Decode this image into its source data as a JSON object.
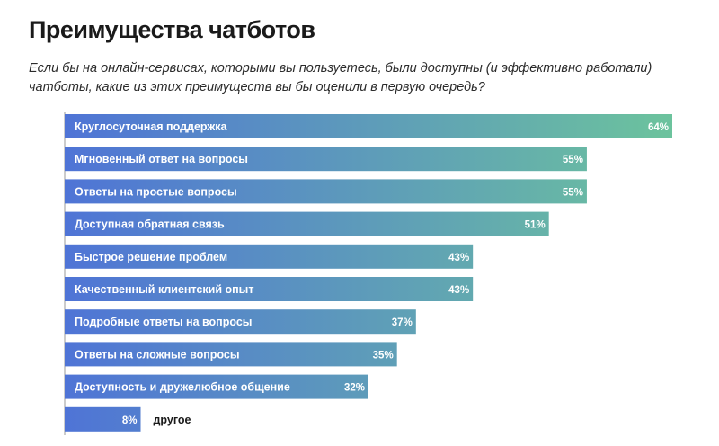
{
  "chart_data": {
    "type": "bar",
    "orientation": "horizontal",
    "title": "Преимущества чатботов",
    "subtitle": "Если бы на онлайн-сервисах, которыми вы пользуетесь, были доступны (и эффективно работали) чатботы, какие из этих преимуществ вы бы оценили в первую очередь?",
    "categories": [
      "Круглосуточная поддержка",
      "Мгновенный ответ на вопросы",
      "Ответы на простые вопросы",
      "Доступная обратная связь",
      "Быстрое решение проблем",
      "Качественный клиентский опыт",
      "Подробные ответы на вопросы",
      "Ответы на сложные вопросы",
      "Доступность и дружелюбное общение",
      "другое"
    ],
    "values": [
      64,
      55,
      55,
      51,
      43,
      43,
      37,
      35,
      32,
      8
    ],
    "value_labels": [
      "64%",
      "55%",
      "55%",
      "51%",
      "43%",
      "43%",
      "37%",
      "35%",
      "32%",
      "8%"
    ],
    "unit": "%",
    "xlim": [
      0,
      64
    ],
    "colors": {
      "start": "#4f74d6",
      "end": "#6cc39d"
    }
  }
}
